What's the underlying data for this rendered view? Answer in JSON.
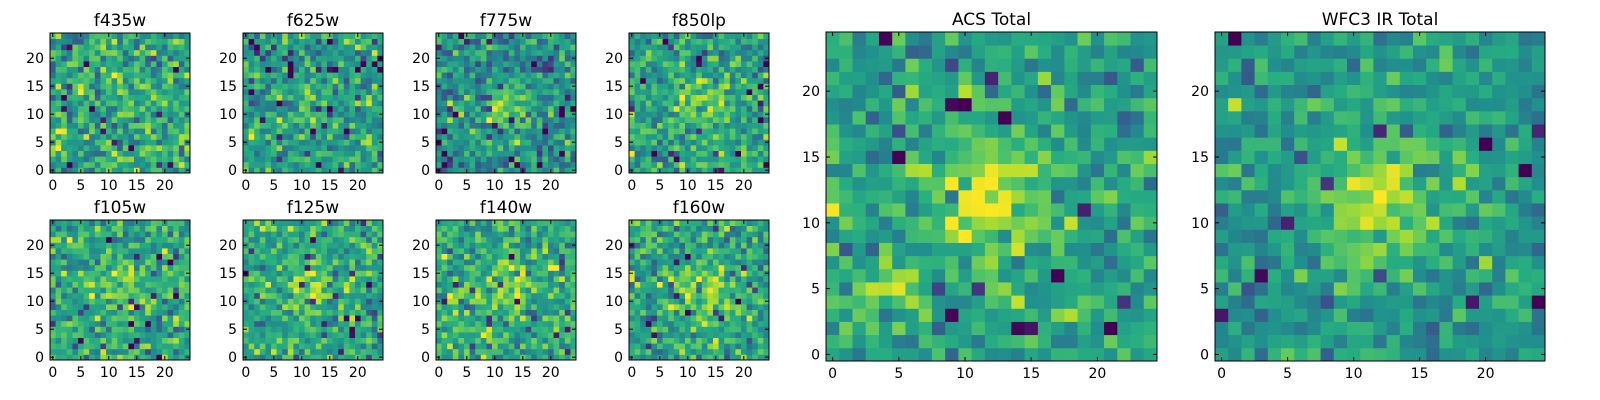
{
  "figure": {
    "description_colormap": "viridis",
    "background": "#ffffff"
  },
  "chart_data": [
    {
      "type": "heatmap",
      "title": "f435w",
      "xlim": [
        0,
        25
      ],
      "ylim": [
        0,
        25
      ],
      "xticks": [
        0,
        5,
        10,
        15,
        20
      ],
      "yticks": [
        0,
        5,
        10,
        15,
        20
      ],
      "colormap": "viridis",
      "source_blob": null,
      "pixel_values": "random-noise-25x25",
      "peak": null,
      "peak_strength": 0.0,
      "noise_seed": 11,
      "mean": 0.6,
      "std": 0.15
    },
    {
      "type": "heatmap",
      "title": "f625w",
      "xlim": [
        0,
        25
      ],
      "ylim": [
        0,
        25
      ],
      "xticks": [
        0,
        5,
        10,
        15,
        20
      ],
      "yticks": [
        0,
        5,
        10,
        15,
        20
      ],
      "colormap": "viridis",
      "pixel_values": "noise-with-faint-source-25x25",
      "peak": [
        12,
        12
      ],
      "peak_strength": 0.15,
      "noise_seed": 23,
      "mean": 0.55,
      "std": 0.14
    },
    {
      "type": "heatmap",
      "title": "f775w",
      "xlim": [
        0,
        25
      ],
      "ylim": [
        0,
        25
      ],
      "xticks": [
        0,
        5,
        10,
        15,
        20
      ],
      "yticks": [
        0,
        5,
        10,
        15,
        20
      ],
      "colormap": "viridis",
      "pixel_values": "noise-with-source-25x25",
      "peak": [
        12,
        11
      ],
      "peak_strength": 0.3,
      "noise_seed": 37,
      "mean": 0.5,
      "std": 0.14
    },
    {
      "type": "heatmap",
      "title": "f850lp",
      "xlim": [
        0,
        25
      ],
      "ylim": [
        0,
        25
      ],
      "xticks": [
        0,
        5,
        10,
        15,
        20
      ],
      "yticks": [
        0,
        5,
        10,
        15,
        20
      ],
      "colormap": "viridis",
      "pixel_values": "noise-with-source-25x25",
      "peak": [
        12,
        11
      ],
      "peak_strength": 0.25,
      "noise_seed": 41,
      "mean": 0.58,
      "std": 0.14
    },
    {
      "type": "heatmap",
      "title": "f105w",
      "xlim": [
        0,
        25
      ],
      "ylim": [
        0,
        25
      ],
      "xticks": [
        0,
        5,
        10,
        15,
        20
      ],
      "yticks": [
        0,
        5,
        10,
        15,
        20
      ],
      "colormap": "viridis",
      "pixel_values": "noise-with-source-25x25",
      "peak": [
        12,
        12
      ],
      "peak_strength": 0.2,
      "noise_seed": 53,
      "mean": 0.6,
      "std": 0.14
    },
    {
      "type": "heatmap",
      "title": "f125w",
      "xlim": [
        0,
        25
      ],
      "ylim": [
        0,
        25
      ],
      "xticks": [
        0,
        5,
        10,
        15,
        20
      ],
      "yticks": [
        0,
        5,
        10,
        15,
        20
      ],
      "colormap": "viridis",
      "pixel_values": "noise-with-source-25x25",
      "peak": [
        12,
        12
      ],
      "peak_strength": 0.25,
      "noise_seed": 67,
      "mean": 0.6,
      "std": 0.13
    },
    {
      "type": "heatmap",
      "title": "f140w",
      "xlim": [
        0,
        25
      ],
      "ylim": [
        0,
        25
      ],
      "xticks": [
        0,
        5,
        10,
        15,
        20
      ],
      "yticks": [
        0,
        5,
        10,
        15,
        20
      ],
      "colormap": "viridis",
      "pixel_values": "noise-with-source-25x25",
      "peak": [
        12,
        12
      ],
      "peak_strength": 0.2,
      "noise_seed": 71,
      "mean": 0.62,
      "std": 0.14
    },
    {
      "type": "heatmap",
      "title": "f160w",
      "xlim": [
        0,
        25
      ],
      "ylim": [
        0,
        25
      ],
      "xticks": [
        0,
        5,
        10,
        15,
        20
      ],
      "yticks": [
        0,
        5,
        10,
        15,
        20
      ],
      "colormap": "viridis",
      "pixel_values": "noise-with-source-25x25",
      "peak": [
        12,
        12
      ],
      "peak_strength": 0.25,
      "noise_seed": 83,
      "mean": 0.6,
      "std": 0.14
    },
    {
      "type": "heatmap",
      "title": "ACS Total",
      "xlim": [
        0,
        25
      ],
      "ylim": [
        0,
        25
      ],
      "xticks": [
        0,
        5,
        10,
        15,
        20
      ],
      "yticks": [
        0,
        5,
        10,
        15,
        20
      ],
      "colormap": "viridis",
      "pixel_values": "noise-with-source-25x25",
      "peak": [
        12,
        12
      ],
      "peak_strength": 0.35,
      "secondary_peak": [
        4,
        5
      ],
      "noise_seed": 97,
      "mean": 0.58,
      "std": 0.12
    },
    {
      "type": "heatmap",
      "title": "WFC3 IR Total",
      "xlim": [
        0,
        25
      ],
      "ylim": [
        0,
        25
      ],
      "xticks": [
        0,
        5,
        10,
        15,
        20
      ],
      "yticks": [
        0,
        5,
        10,
        15,
        20
      ],
      "colormap": "viridis",
      "pixel_values": "noise-with-source-25x25",
      "peak": [
        12,
        12
      ],
      "peak_strength": 0.35,
      "noise_seed": 101,
      "mean": 0.55,
      "std": 0.11
    }
  ]
}
